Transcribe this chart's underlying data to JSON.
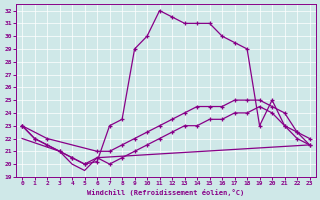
{
  "xlabel": "Windchill (Refroidissement éolien,°C)",
  "background_color": "#cfe8e8",
  "line_color": "#880088",
  "xlim": [
    -0.5,
    23.5
  ],
  "ylim": [
    19,
    32.5
  ],
  "yticks": [
    19,
    20,
    21,
    22,
    23,
    24,
    25,
    26,
    27,
    28,
    29,
    30,
    31,
    32
  ],
  "xticks": [
    0,
    1,
    2,
    3,
    4,
    5,
    6,
    7,
    8,
    9,
    10,
    11,
    12,
    13,
    14,
    15,
    16,
    17,
    18,
    19,
    20,
    21,
    22,
    23
  ],
  "line1_x": [
    0,
    1,
    2,
    3,
    4,
    5,
    6,
    7,
    8,
    9,
    10,
    11,
    12,
    13,
    14,
    15,
    16,
    17,
    18,
    19,
    20,
    21,
    22,
    23
  ],
  "line1_y": [
    23,
    22,
    21.5,
    21,
    20.5,
    20,
    20.2,
    23,
    23.5,
    29,
    30,
    32,
    31.5,
    31,
    31,
    31,
    30,
    29.5,
    29,
    23,
    25,
    23,
    22,
    21.5
  ],
  "line2_x": [
    0,
    2,
    6,
    7,
    8,
    9,
    10,
    11,
    12,
    13,
    14,
    15,
    16,
    17,
    18,
    19,
    20,
    21,
    22,
    23
  ],
  "line2_y": [
    23,
    22,
    21,
    21,
    21.5,
    22,
    22.5,
    23,
    23.5,
    24,
    24.5,
    24.5,
    24.5,
    25,
    25,
    25,
    24.5,
    24,
    22.5,
    22
  ],
  "line3_x": [
    0,
    1,
    3,
    4,
    5,
    6,
    7,
    8,
    9,
    10,
    11,
    12,
    13,
    14,
    15,
    16,
    17,
    18,
    19,
    20,
    21,
    22,
    23
  ],
  "line3_y": [
    23,
    22,
    21,
    20.5,
    20,
    20.5,
    20,
    20.5,
    21,
    21.5,
    22,
    22.5,
    23,
    23,
    23.5,
    23.5,
    24,
    24,
    24.5,
    24,
    23,
    22.5,
    21.5
  ],
  "line4_x": [
    0,
    3,
    4,
    5,
    6,
    23
  ],
  "line4_y": [
    22,
    21,
    20,
    19.5,
    20.5,
    21.5
  ]
}
